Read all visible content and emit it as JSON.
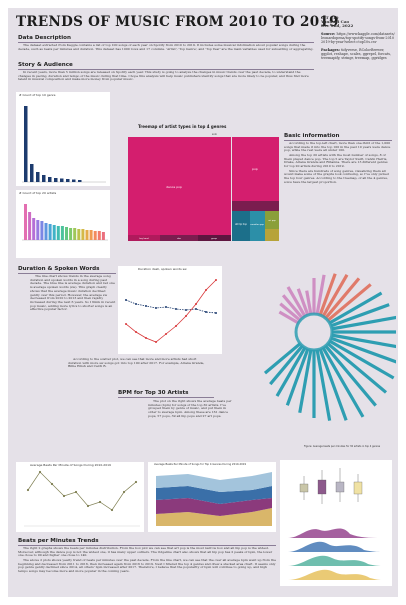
{
  "title": "TRENDS OF MUSIC FROM 2010 TO 2019",
  "meta": {
    "course": "IST 719",
    "author": "Yunhuai Cao",
    "date": "Dec 2nd, 2022",
    "source_label": "Source:",
    "source_text": "https://www.kaggle.com/datasets/leonardopena/top-spotify-songs-from-20102019-by-year?select=top10s.csv",
    "packages_label": "Packages:",
    "packages_text": "tidyverse, RColorBrewer, ggplot, reshape, scales, ggrepel, forcats, treemapify, stringr, treemap, ggridges"
  },
  "sections": {
    "data_desc": {
      "heading": "Data Description",
      "text": "The dataset extracted from Kaggle contains a list of top 100 songs of each year on Spotify from 2010 to 2019. It includes some musical information about popular songs during the decade, such as beats per minutes and duration. This dataset has 1000 rows and 17 columns. 'Artist', 'Top Genre', and 'Top Year' are the main variables used for subsetting or aggregating."
    },
    "story": {
      "heading": "Story & Audience",
      "text": "In recent years, more than 5 million songs are released on Spotify each year. This study is going to analyze the changes in music trends over the past decade, to understand the changes in pacing, duration and tempo of the music during that time. I hope this analysis will help music publishers identify songs that are more likely to be popular, and thus find more talent in musical composition and make more money from popular music."
    },
    "basic": {
      "heading": "Basic information",
      "paras": [
        "According to the top-left chart, more than one-third of the 1,000 songs that made it into the top 100 in the past 10 years were dance pop, while the rest were all under 100.",
        "Among the top 20 artists with the most number of songs, 8 of them played dance pop. The top 5 are Taylor Swift, Calvin Harris, Drake, Ariana Grande and Rihanna. There are 13 different genres for top 20 artists during 2010 to 2019.",
        "Since there are hundreds of song genres, visualizing them all would make some of the graphs look confusing, so I've only picked the top four genres. According to the treemap, of all the 4 genres, solos have the largest proportion."
      ]
    },
    "duration": {
      "heading": "Duration & Spoken Words",
      "paras": [
        "The line chart shows trends in the average song duration and spoken words in a song during past decade. The blue line is average duration and red one is average spoken words (sw). This graph clearly shows that the average music duration declined gently over this period. However, the average sw decreased from 2010 to 2013 and then rapidly increased during the next 6 years. So I think in recent pop music, adding more lyrics to shorter songs is an effective popular factor.",
        "According to the scatter plot, we can see that more and more artists had short duration with more sw songs got into top 100 after 2017. For example, Ariana Grande, Billie Eilish and Cardi B."
      ]
    },
    "bpm": {
      "heading": "BPM for Top 30 Artists",
      "text": "The plot on the right shows the average beats per minutes (bpm) for songs of the top 30 artists. I've grouped them by genre of music, and put them in order to average bpm. Among these are 161 dance pops, 57 pops, 39 all hip pops and 27 art pops."
    },
    "bpm_trend": {
      "heading": "Beats per Minutes Trends",
      "paras": [
        "The right 2 graphs shows the beats per minutes distribution. From the box plot we can see that art pop is the most narrow box and all hip pop is the widest. Moreover, although the dance pop is not the widest one, it has many upper outliers. The ridgeline chart also shows that all hip pop has 2 peaks of bpm, the lower one close to 90 and higher one close to 140.",
        "The above 2 plots shows yearly trend of beats per minutes over the past decade. From the line chart, we can see that the over all average bpm went up from the beginning and decreased from 2011 to 2016, then increased again from 2016 to 2019. Next I filtered the top 4 genres and drew a stacked area chart. It seems only pop genre gently declined since 2014, all others' bpm increased after 2017. Therefore, I believe that the popularity of bpm will continue to going up, and high tempo songs may become more and more popular in the coming years."
      ]
    }
  },
  "charts": {
    "genre_bar_title": "# Count of top 10 genre",
    "artist_bar_title": "# Count of top 20 artists",
    "treemap_title": "Treemap of artist types in top 4 genres",
    "line_title": "Duration dash, spoken words sw",
    "radial_caption": "Figure: Average beats per minutes for 30 artists in top 4 genres",
    "bpm_line_title": "Average Beats Per Minute of Songs During 2010-2019",
    "bpm_area_title": "Average Beats Per Minute of Songs for Top 4 Genres During 2010-2019",
    "treemap_labels": [
      "dance pop",
      "pop",
      "atl hip hop",
      "canadian pop",
      "art pop",
      "boy band",
      "duo",
      "group"
    ],
    "years": [
      "2010",
      "2011",
      "2012",
      "2013",
      "2014",
      "2015",
      "2016",
      "2017",
      "2018",
      "2019"
    ]
  },
  "colors": {
    "poster_bg": "#e5e1e8",
    "treemap_dance_solo": "#d41e6e",
    "treemap_dance_duo": "#7b1d4f",
    "treemap_pop": "#1c6f8a",
    "treemap_hip": "#8a9f3a",
    "radial": "#2e9eb2",
    "radial_pink": "#cf8fc3"
  }
}
